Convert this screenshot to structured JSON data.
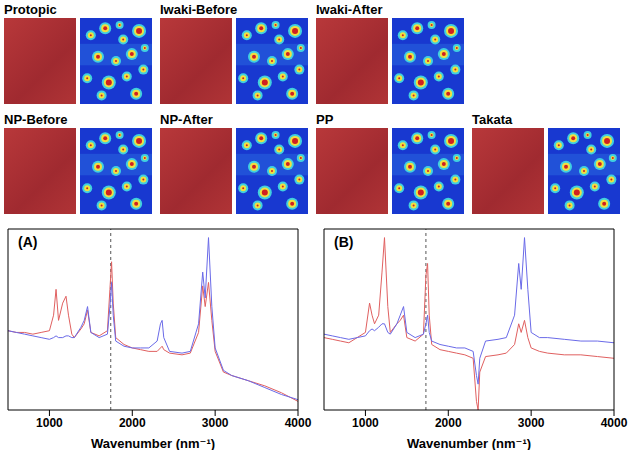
{
  "panels": [
    "Protopic",
    "Iwaki-Before",
    "Iwaki-After",
    "NP-Before",
    "NP-After",
    "PP",
    "Takata"
  ],
  "chart_data": [
    {
      "type": "line",
      "title": "(A)",
      "x_label": "Wavenumber (nm⁻¹)",
      "x": [
        500,
        600,
        700,
        800,
        900,
        1000,
        1050,
        1080,
        1110,
        1160,
        1200,
        1230,
        1270,
        1300,
        1380,
        1420,
        1460,
        1500,
        1600,
        1700,
        1730,
        1750,
        1770,
        1800,
        1900,
        2000,
        2100,
        2200,
        2300,
        2340,
        2360,
        2380,
        2450,
        2600,
        2700,
        2800,
        2850,
        2880,
        2920,
        2960,
        3000,
        3100,
        3200,
        3400,
        3600,
        3800,
        4000
      ],
      "series": [
        {
          "color": "#e06060",
          "values": [
            0.46,
            0.45,
            0.45,
            0.44,
            0.45,
            0.46,
            0.55,
            0.7,
            0.52,
            0.62,
            0.66,
            0.55,
            0.44,
            0.42,
            0.47,
            0.5,
            0.58,
            0.45,
            0.43,
            0.46,
            0.7,
            0.86,
            0.62,
            0.42,
            0.38,
            0.36,
            0.35,
            0.34,
            0.34,
            0.36,
            0.37,
            0.35,
            0.33,
            0.32,
            0.33,
            0.45,
            0.72,
            0.6,
            0.74,
            0.52,
            0.34,
            0.22,
            0.2,
            0.17,
            0.14,
            0.1,
            0.05
          ]
        },
        {
          "color": "#6a6ae8",
          "values": [
            0.46,
            0.45,
            0.44,
            0.43,
            0.42,
            0.41,
            0.42,
            0.43,
            0.42,
            0.42,
            0.43,
            0.43,
            0.42,
            0.42,
            0.48,
            0.52,
            0.6,
            0.45,
            0.42,
            0.44,
            0.6,
            0.74,
            0.55,
            0.4,
            0.37,
            0.36,
            0.36,
            0.36,
            0.4,
            0.5,
            0.52,
            0.42,
            0.34,
            0.33,
            0.34,
            0.5,
            0.8,
            0.65,
            1.0,
            0.6,
            0.36,
            0.23,
            0.2,
            0.17,
            0.13,
            0.09,
            0.06
          ]
        }
      ],
      "xlim": [
        500,
        4000
      ],
      "xticks": [
        1000,
        2000,
        3000,
        4000
      ],
      "ylim": [
        0,
        1.05
      ],
      "vline": 1740,
      "tick_labels": "x",
      "grid": false
    },
    {
      "type": "line",
      "title": "(B)",
      "x_label": "Wavenumber (nm⁻¹)",
      "x": [
        500,
        600,
        700,
        800,
        900,
        1000,
        1050,
        1080,
        1110,
        1160,
        1200,
        1230,
        1270,
        1300,
        1380,
        1420,
        1460,
        1500,
        1600,
        1700,
        1730,
        1750,
        1770,
        1800,
        1900,
        2000,
        2100,
        2200,
        2300,
        2340,
        2360,
        2380,
        2450,
        2600,
        2700,
        2800,
        2850,
        2880,
        2920,
        2960,
        3000,
        3100,
        3200,
        3400,
        3600,
        3800,
        4000
      ],
      "series": [
        {
          "color": "#e06060",
          "values": [
            0.42,
            0.41,
            0.4,
            0.39,
            0.42,
            0.45,
            0.62,
            0.55,
            0.5,
            0.55,
            0.8,
            1.0,
            0.6,
            0.45,
            0.5,
            0.52,
            0.55,
            0.42,
            0.4,
            0.44,
            0.78,
            0.85,
            0.55,
            0.38,
            0.35,
            0.34,
            0.33,
            0.32,
            0.3,
            0.05,
            0.0,
            0.22,
            0.31,
            0.32,
            0.33,
            0.38,
            0.5,
            0.45,
            0.52,
            0.42,
            0.36,
            0.34,
            0.33,
            0.32,
            0.32,
            0.31,
            0.3
          ]
        },
        {
          "color": "#6a6ae8",
          "values": [
            0.44,
            0.43,
            0.42,
            0.41,
            0.42,
            0.43,
            0.46,
            0.47,
            0.46,
            0.48,
            0.5,
            0.5,
            0.45,
            0.44,
            0.5,
            0.55,
            0.6,
            0.45,
            0.42,
            0.44,
            0.5,
            0.55,
            0.45,
            0.4,
            0.38,
            0.37,
            0.36,
            0.36,
            0.34,
            0.2,
            0.15,
            0.3,
            0.4,
            0.41,
            0.42,
            0.55,
            0.85,
            0.7,
            1.0,
            0.7,
            0.45,
            0.42,
            0.42,
            0.41,
            0.4,
            0.4,
            0.39
          ]
        }
      ],
      "xlim": [
        500,
        4000
      ],
      "xticks": [
        1000,
        2000,
        3000,
        4000
      ],
      "ylim": [
        0,
        1.05
      ],
      "vline": 1730,
      "tick_labels": "x",
      "grid": false
    }
  ]
}
